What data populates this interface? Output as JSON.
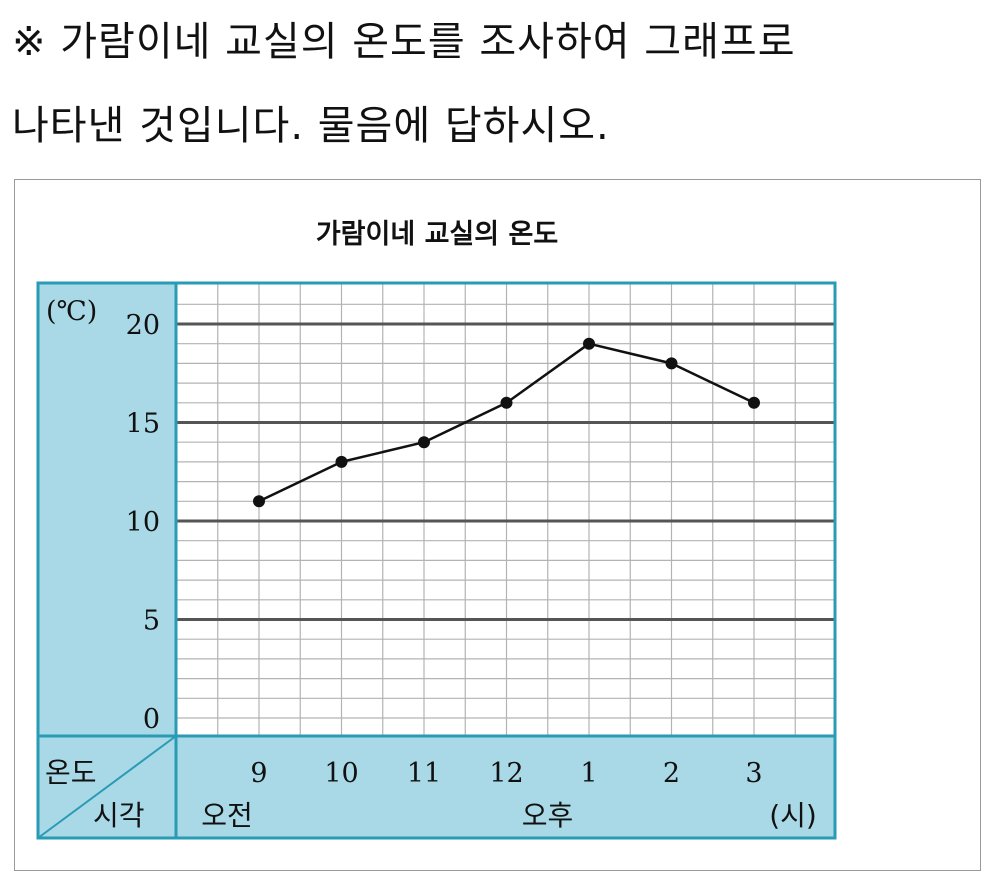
{
  "question": {
    "line1": "※ 가람이네 교실의 온도를 조사하여 그래프로",
    "line2": "나타낸 것입니다. 물음에 답하시오."
  },
  "chart_data": {
    "type": "line",
    "title": "가람이네 교실의 온도",
    "ylabel": "온도",
    "xlabel": "시각",
    "y_unit": "(℃)",
    "x_unit": "(시)",
    "ylim": [
      0,
      20
    ],
    "y_ticks": [
      0,
      5,
      10,
      15,
      20
    ],
    "categories": [
      "9",
      "10",
      "11",
      "12",
      "1",
      "2",
      "3"
    ],
    "period_labels": {
      "am": "오전",
      "pm": "오후"
    },
    "values": [
      11,
      13,
      14,
      16,
      19,
      18,
      16
    ],
    "grid": true,
    "colors": {
      "header_fill": "#a9d9e6",
      "border": "#2a9bb5",
      "line": "#111111"
    }
  }
}
